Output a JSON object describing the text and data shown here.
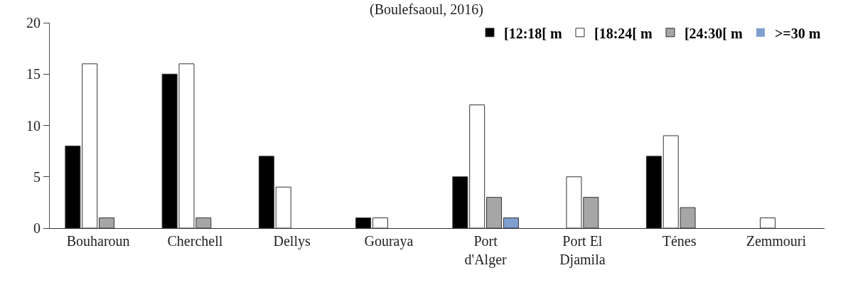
{
  "chart_data": {
    "type": "bar",
    "title": "(Boulefsaoul, 2016)",
    "categories": [
      "Bouharoun",
      "Cherchell",
      "Dellys",
      "Gouraya",
      "Port d'Alger",
      "Port El Djamila",
      "Ténes",
      "Zemmouri"
    ],
    "series": [
      {
        "name": "[12:18[ m",
        "color": "#000000",
        "values": [
          8,
          15,
          7,
          1,
          5,
          0,
          7,
          0
        ]
      },
      {
        "name": "[18:24[ m",
        "color": "#ffffff",
        "values": [
          16,
          16,
          4,
          1,
          12,
          5,
          9,
          1
        ]
      },
      {
        "name": "[24:30[ m",
        "color": "#a6a6a6",
        "values": [
          1,
          1,
          0,
          0,
          3,
          3,
          2,
          0
        ]
      },
      {
        "name": ">=30 m",
        "color": "#7f9fcf",
        "values": [
          0,
          0,
          0,
          0,
          1,
          0,
          0,
          0
        ]
      }
    ],
    "ylim": [
      0,
      20
    ],
    "yticks": [
      0,
      5,
      10,
      15,
      20
    ],
    "legend": "top right"
  }
}
